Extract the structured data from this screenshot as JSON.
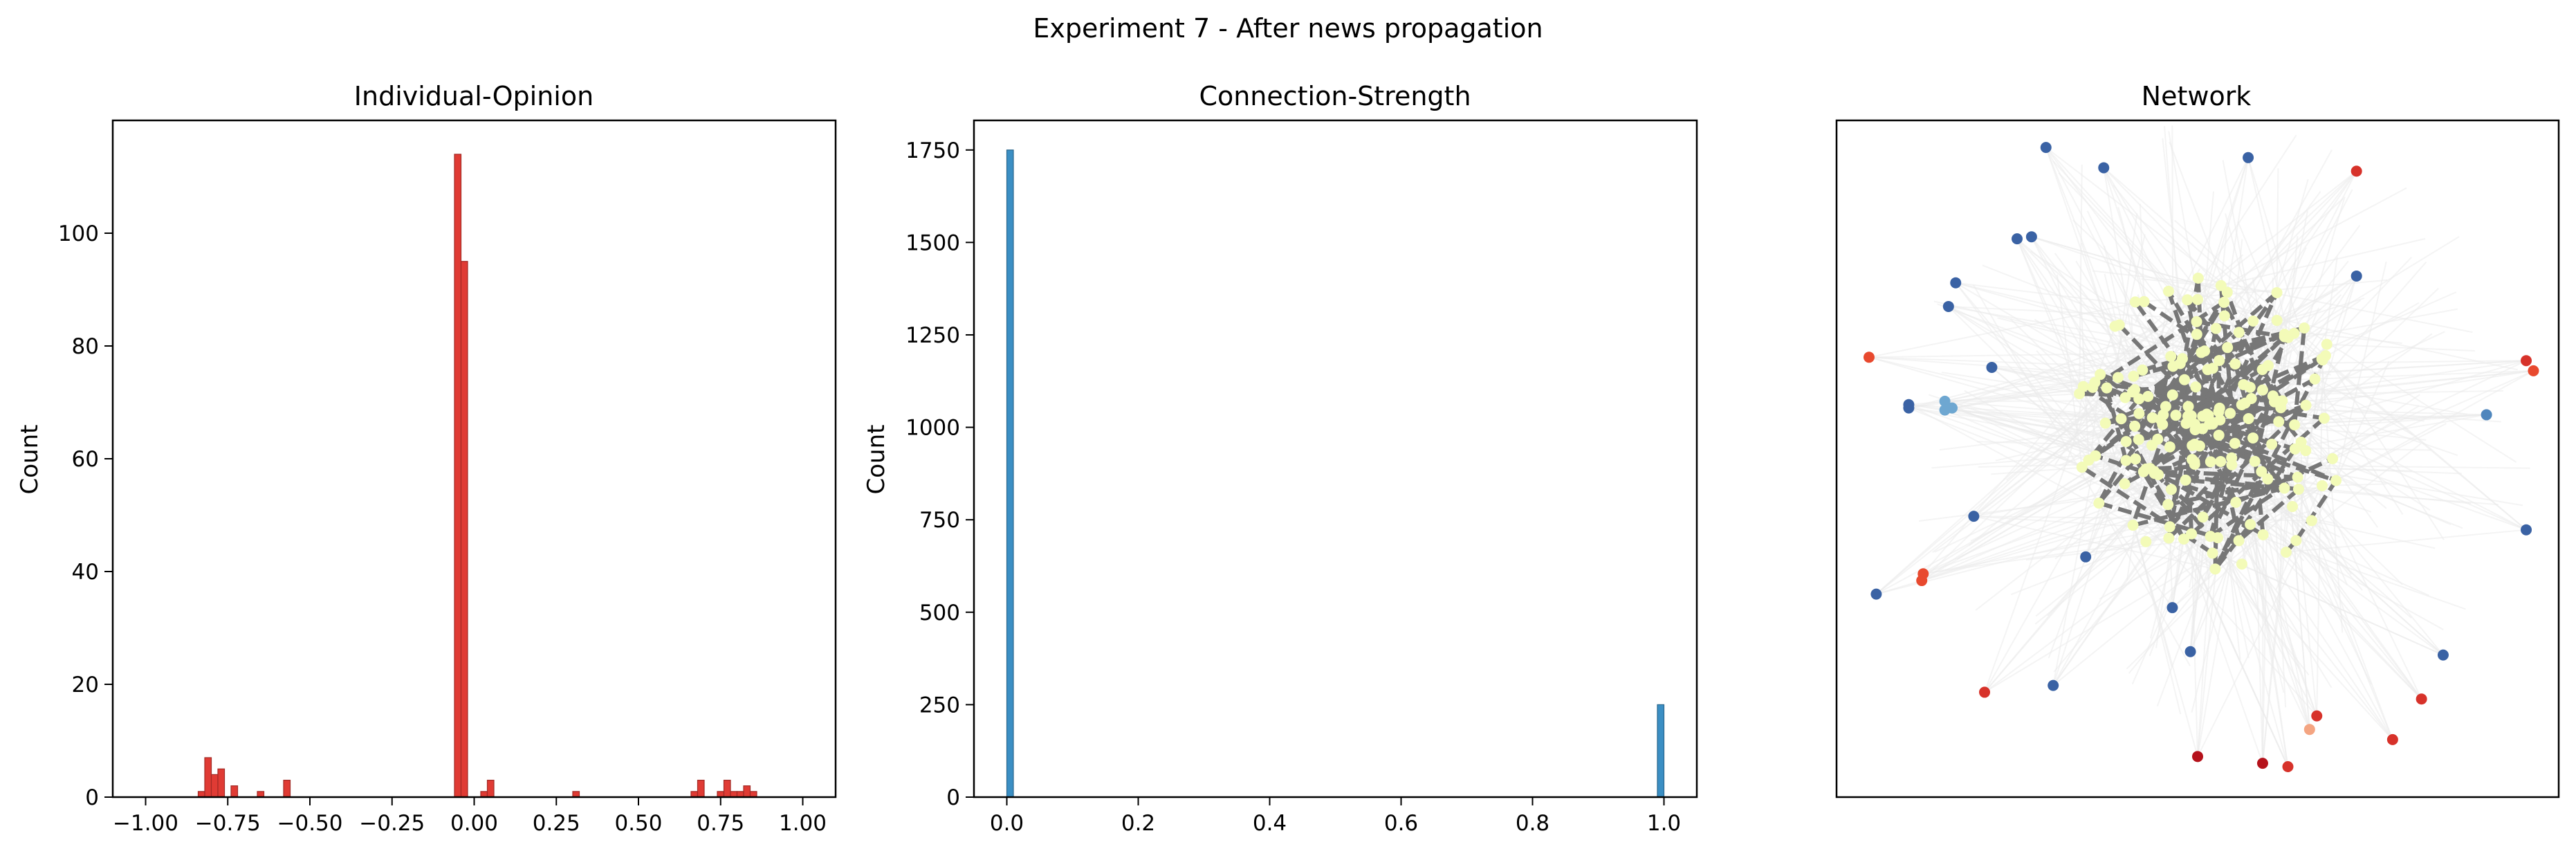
{
  "figure": {
    "suptitle": "Experiment 7 - After news propagation"
  },
  "chart_data": [
    {
      "type": "bar",
      "title": "Individual-Opinion",
      "xlabel": "",
      "ylabel": "Count",
      "xlim": [
        -1.1,
        1.1
      ],
      "ylim": [
        0,
        120
      ],
      "bin_width": 0.02,
      "bar_color": "#e03b34",
      "xticks": [
        -1.0,
        -0.75,
        -0.5,
        -0.25,
        0.0,
        0.25,
        0.5,
        0.75,
        1.0
      ],
      "xtick_labels": [
        "−1.00",
        "−0.75",
        "−0.50",
        "−0.25",
        "0.00",
        "0.25",
        "0.50",
        "0.75",
        "1.00"
      ],
      "yticks": [
        0,
        20,
        40,
        60,
        80,
        100
      ],
      "ytick_labels": [
        "0",
        "20",
        "40",
        "60",
        "80",
        "100"
      ],
      "bars": [
        {
          "x": -0.84,
          "count": 1
        },
        {
          "x": -0.82,
          "count": 7
        },
        {
          "x": -0.8,
          "count": 4
        },
        {
          "x": -0.78,
          "count": 5
        },
        {
          "x": -0.74,
          "count": 2
        },
        {
          "x": -0.66,
          "count": 1
        },
        {
          "x": -0.58,
          "count": 3
        },
        {
          "x": -0.06,
          "count": 114
        },
        {
          "x": -0.04,
          "count": 95
        },
        {
          "x": 0.02,
          "count": 1
        },
        {
          "x": 0.04,
          "count": 3
        },
        {
          "x": 0.3,
          "count": 1
        },
        {
          "x": 0.66,
          "count": 1
        },
        {
          "x": 0.68,
          "count": 3
        },
        {
          "x": 0.74,
          "count": 1
        },
        {
          "x": 0.76,
          "count": 3
        },
        {
          "x": 0.78,
          "count": 1
        },
        {
          "x": 0.8,
          "count": 1
        },
        {
          "x": 0.82,
          "count": 2
        },
        {
          "x": 0.84,
          "count": 1
        }
      ]
    },
    {
      "type": "bar",
      "title": "Connection-Strength",
      "xlabel": "",
      "ylabel": "Count",
      "xlim": [
        -0.05,
        1.05
      ],
      "ylim": [
        0,
        1830
      ],
      "bin_width": 0.01,
      "bar_color": "#3b8fc4",
      "xticks": [
        0.0,
        0.2,
        0.4,
        0.6,
        0.8,
        1.0
      ],
      "xtick_labels": [
        "0.0",
        "0.2",
        "0.4",
        "0.6",
        "0.8",
        "1.0"
      ],
      "yticks": [
        0,
        250,
        500,
        750,
        1000,
        1250,
        1500,
        1750
      ],
      "ytick_labels": [
        "0",
        "250",
        "500",
        "750",
        "1000",
        "1250",
        "1500",
        "1750"
      ],
      "bars": [
        {
          "x": 0.0,
          "count": 1750
        },
        {
          "x": 0.99,
          "count": 250
        }
      ]
    },
    {
      "type": "scatter",
      "title": "Network",
      "xlabel": "",
      "ylabel": "",
      "xlim": [
        0,
        1
      ],
      "ylim": [
        0,
        1
      ],
      "axes_ticks": "none",
      "edge_color_light": "#ebebeb",
      "edge_color_strong": "#777777",
      "node_color_center": "#f3fbb8",
      "outer_nodes": [
        {
          "x": 0.29,
          "y": 0.96,
          "color": "#3a62a4"
        },
        {
          "x": 0.37,
          "y": 0.93,
          "color": "#3a62a4"
        },
        {
          "x": 0.57,
          "y": 0.945,
          "color": "#3a62a4"
        },
        {
          "x": 0.72,
          "y": 0.925,
          "color": "#d7322a"
        },
        {
          "x": 0.25,
          "y": 0.825,
          "color": "#3a62a4"
        },
        {
          "x": 0.27,
          "y": 0.828,
          "color": "#3a62a4"
        },
        {
          "x": 0.72,
          "y": 0.77,
          "color": "#3a62a4"
        },
        {
          "x": 0.165,
          "y": 0.76,
          "color": "#3a62a4"
        },
        {
          "x": 0.155,
          "y": 0.725,
          "color": "#3a62a4"
        },
        {
          "x": 0.045,
          "y": 0.65,
          "color": "#e8492e"
        },
        {
          "x": 0.965,
          "y": 0.63,
          "color": "#e8492e"
        },
        {
          "x": 0.955,
          "y": 0.645,
          "color": "#d7322a"
        },
        {
          "x": 0.215,
          "y": 0.635,
          "color": "#3a62a4"
        },
        {
          "x": 0.1,
          "y": 0.575,
          "color": "#3a62a4"
        },
        {
          "x": 0.1,
          "y": 0.58,
          "color": "#3a62a4"
        },
        {
          "x": 0.15,
          "y": 0.585,
          "color": "#6ea7d1"
        },
        {
          "x": 0.16,
          "y": 0.575,
          "color": "#6ea7d1"
        },
        {
          "x": 0.15,
          "y": 0.572,
          "color": "#6ea7d1"
        },
        {
          "x": 0.9,
          "y": 0.565,
          "color": "#4f86bd"
        },
        {
          "x": 0.19,
          "y": 0.415,
          "color": "#3a62a4"
        },
        {
          "x": 0.955,
          "y": 0.395,
          "color": "#3a62a4"
        },
        {
          "x": 0.345,
          "y": 0.355,
          "color": "#3a62a4"
        },
        {
          "x": 0.12,
          "y": 0.33,
          "color": "#e8492e"
        },
        {
          "x": 0.118,
          "y": 0.32,
          "color": "#e8492e"
        },
        {
          "x": 0.055,
          "y": 0.3,
          "color": "#3a62a4"
        },
        {
          "x": 0.465,
          "y": 0.28,
          "color": "#3a62a4"
        },
        {
          "x": 0.49,
          "y": 0.215,
          "color": "#3a62a4"
        },
        {
          "x": 0.84,
          "y": 0.21,
          "color": "#3a62a4"
        },
        {
          "x": 0.3,
          "y": 0.165,
          "color": "#3a62a4"
        },
        {
          "x": 0.205,
          "y": 0.155,
          "color": "#d7322a"
        },
        {
          "x": 0.81,
          "y": 0.145,
          "color": "#d7322a"
        },
        {
          "x": 0.665,
          "y": 0.12,
          "color": "#d7322a"
        },
        {
          "x": 0.655,
          "y": 0.1,
          "color": "#f4a582"
        },
        {
          "x": 0.77,
          "y": 0.085,
          "color": "#d7322a"
        },
        {
          "x": 0.5,
          "y": 0.06,
          "color": "#b5121b"
        },
        {
          "x": 0.59,
          "y": 0.05,
          "color": "#b5121b"
        },
        {
          "x": 0.625,
          "y": 0.045,
          "color": "#d7322a"
        }
      ]
    }
  ]
}
